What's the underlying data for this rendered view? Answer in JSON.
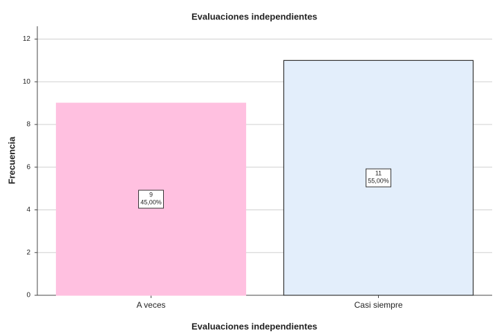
{
  "chart_data": {
    "type": "bar",
    "title": "Evaluaciones independientes",
    "x_label": "Evaluaciones independientes",
    "y_label": "Frecuencia",
    "categories": [
      "A veces",
      "Casi siempre"
    ],
    "values": [
      9,
      11
    ],
    "percentages": [
      45,
      55
    ],
    "percentage_labels": [
      "45,00%",
      "55,00%"
    ],
    "colors": [
      "#ffc0e0",
      "#e3eefb"
    ],
    "ylim": [
      0,
      12.6
    ],
    "yticks": [
      0,
      2,
      4,
      6,
      8,
      10,
      12
    ],
    "grid": true
  }
}
